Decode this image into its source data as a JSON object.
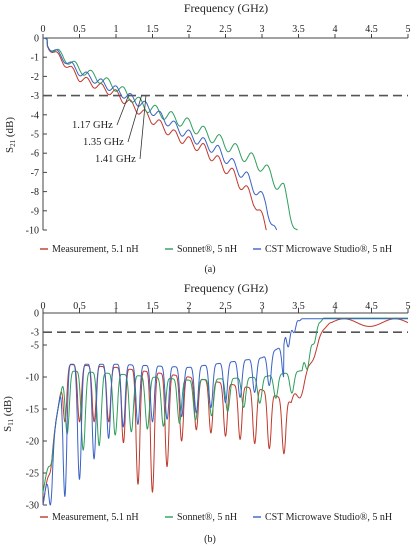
{
  "colors": {
    "measurement": "#c0392b",
    "sonnet": "#2e9e5b",
    "cst": "#3a62c4",
    "axis": "#444444",
    "threshold": "#555555"
  },
  "chart_data": [
    {
      "type": "line",
      "panel_label": "(a)",
      "xlabel": "Frequency  (GHz)",
      "ylabel_main": "S",
      "ylabel_sub": "21",
      "ylabel_unit": " (dB)",
      "xlim": [
        0,
        5
      ],
      "ylim": [
        -10,
        0
      ],
      "x_axis_position": "top",
      "x_ticks": [
        0,
        0.5,
        1,
        1.5,
        2,
        2.5,
        3,
        3.5,
        4,
        4.5,
        5
      ],
      "x_tick_labels": [
        "0",
        "0.5",
        "1",
        "1.5",
        "2",
        "2.5",
        "3",
        "3.5",
        "4",
        "4.5",
        "5"
      ],
      "y_ticks": [
        0,
        -1,
        -2,
        -3,
        -4,
        -5,
        -6,
        -7,
        -8,
        -9,
        -10
      ],
      "y_tick_labels": [
        "0",
        "-1",
        "-2",
        "-3",
        "-4",
        "-5",
        "-6",
        "-7",
        "-8",
        "-9",
        "-10"
      ],
      "threshold_line": -3,
      "annotations": [
        {
          "text": "1.17 GHz",
          "x": 1.17,
          "y": -3
        },
        {
          "text": "1.35 GHz",
          "x": 1.35,
          "y": -3
        },
        {
          "text": "1.41 GHz",
          "x": 1.41,
          "y": -3
        }
      ],
      "legend": [
        "Measurement, 5.1 nH",
        "Sonnet®, 5 nH",
        "CST Microwave Studio®, 5 nH"
      ],
      "legend_position": "bottom",
      "series": [
        {
          "name": "Measurement, 5.1 nH",
          "color_key": "measurement",
          "kind": "s21",
          "end": 3.1,
          "period": 0.2,
          "dip_scale": 1.0,
          "base": [
            [
              0,
              0
            ],
            [
              0.5,
              -1.9
            ],
            [
              1,
              -2.7
            ],
            [
              1.3,
              -3.5
            ],
            [
              1.8,
              -4.8
            ],
            [
              2.2,
              -5.5
            ],
            [
              2.6,
              -6.8
            ],
            [
              2.9,
              -8.2
            ],
            [
              3.1,
              -10
            ]
          ]
        },
        {
          "name": "Sonnet®, 5 nH",
          "color_key": "sonnet",
          "kind": "s21",
          "end": 3.5,
          "period": 0.22,
          "dip_scale": 1.2,
          "base": [
            [
              0,
              0
            ],
            [
              0.5,
              -1.4
            ],
            [
              1,
              -2.3
            ],
            [
              1.4,
              -3.3
            ],
            [
              2,
              -4.2
            ],
            [
              2.5,
              -5.2
            ],
            [
              3,
              -6.3
            ],
            [
              3.3,
              -7.6
            ],
            [
              3.5,
              -10
            ]
          ]
        },
        {
          "name": "CST Microwave Studio®, 5 nH",
          "color_key": "cst",
          "kind": "s21",
          "end": 3.2,
          "period": 0.2,
          "dip_scale": 1.0,
          "base": [
            [
              0,
              0
            ],
            [
              0.5,
              -1.6
            ],
            [
              1,
              -2.5
            ],
            [
              1.4,
              -3.3
            ],
            [
              1.9,
              -4.6
            ],
            [
              2.4,
              -5.6
            ],
            [
              2.8,
              -7.0
            ],
            [
              3.05,
              -8.3
            ],
            [
              3.2,
              -10
            ]
          ]
        }
      ]
    },
    {
      "type": "line",
      "panel_label": "(b)",
      "xlabel": "Frequency  (GHz)",
      "ylabel_main": "S",
      "ylabel_sub": "11",
      "ylabel_unit": " (dB)",
      "xlim": [
        0,
        5
      ],
      "ylim": [
        -30,
        0
      ],
      "x_axis_position": "top",
      "x_ticks": [
        0,
        0.5,
        1,
        1.5,
        2,
        2.5,
        3,
        3.5,
        4,
        4.5,
        5
      ],
      "x_tick_labels": [
        "0",
        "0.5",
        "1",
        "1.5",
        "2",
        "2.5",
        "3",
        "3.5",
        "4",
        "4.5",
        "5"
      ],
      "y_ticks": [
        0,
        -3,
        -5,
        -10,
        -15,
        -20,
        -25,
        -30
      ],
      "y_tick_labels": [
        "0",
        "-3",
        "-5",
        "-10",
        "-15",
        "-20",
        "-25",
        "-30"
      ],
      "threshold_line": -3,
      "legend": [
        "Measurement, 5.1 nH",
        "Sonnet®, 5 nH",
        "CST Microwave Studio®, 5 nH"
      ],
      "legend_position": "bottom",
      "series": [
        {
          "name": "Measurement, 5.1 nH",
          "color_key": "measurement",
          "kind": "s11",
          "period": 0.2,
          "rise_start": 3.4,
          "rise_end": 3.95,
          "end_level": -1.5,
          "peak": [
            [
              0,
              -30
            ],
            [
              0.3,
              -8
            ],
            [
              1,
              -8.5
            ],
            [
              2,
              -10
            ],
            [
              3,
              -12
            ],
            [
              3.4,
              -14
            ]
          ],
          "valley": [
            [
              0,
              -30
            ],
            [
              0.25,
              -17
            ],
            [
              1,
              -17
            ],
            [
              1.4,
              -30
            ],
            [
              2,
              -18
            ],
            [
              2.8,
              -20
            ],
            [
              3.3,
              -22
            ],
            [
              3.4,
              -22
            ]
          ]
        },
        {
          "name": "Sonnet®, 5 nH",
          "color_key": "sonnet",
          "kind": "s11",
          "period": 0.22,
          "rise_start": 3.55,
          "rise_end": 3.85,
          "end_level": -0.8,
          "peak": [
            [
              0,
              -28
            ],
            [
              0.3,
              -9
            ],
            [
              1,
              -9.5
            ],
            [
              2,
              -10.5
            ],
            [
              3,
              -10
            ],
            [
              3.55,
              -9
            ]
          ],
          "valley": [
            [
              0,
              -28
            ],
            [
              0.25,
              -18
            ],
            [
              0.6,
              -22
            ],
            [
              1,
              -19
            ],
            [
              2,
              -17
            ],
            [
              3,
              -14
            ],
            [
              3.55,
              -12
            ]
          ]
        },
        {
          "name": "CST Microwave Studio®, 5 nH",
          "color_key": "cst",
          "kind": "s11",
          "period": 0.2,
          "rise_start": 3.3,
          "rise_end": 3.55,
          "end_level": -0.9,
          "peak": [
            [
              0,
              -30
            ],
            [
              0.3,
              -8
            ],
            [
              1,
              -8
            ],
            [
              2,
              -8.5
            ],
            [
              3,
              -7
            ],
            [
              3.3,
              -5
            ]
          ],
          "valley": [
            [
              0,
              -30
            ],
            [
              0.2,
              -30
            ],
            [
              0.5,
              -26
            ],
            [
              1,
              -18
            ],
            [
              2,
              -16
            ],
            [
              3,
              -12
            ],
            [
              3.3,
              -10
            ]
          ]
        }
      ]
    }
  ]
}
